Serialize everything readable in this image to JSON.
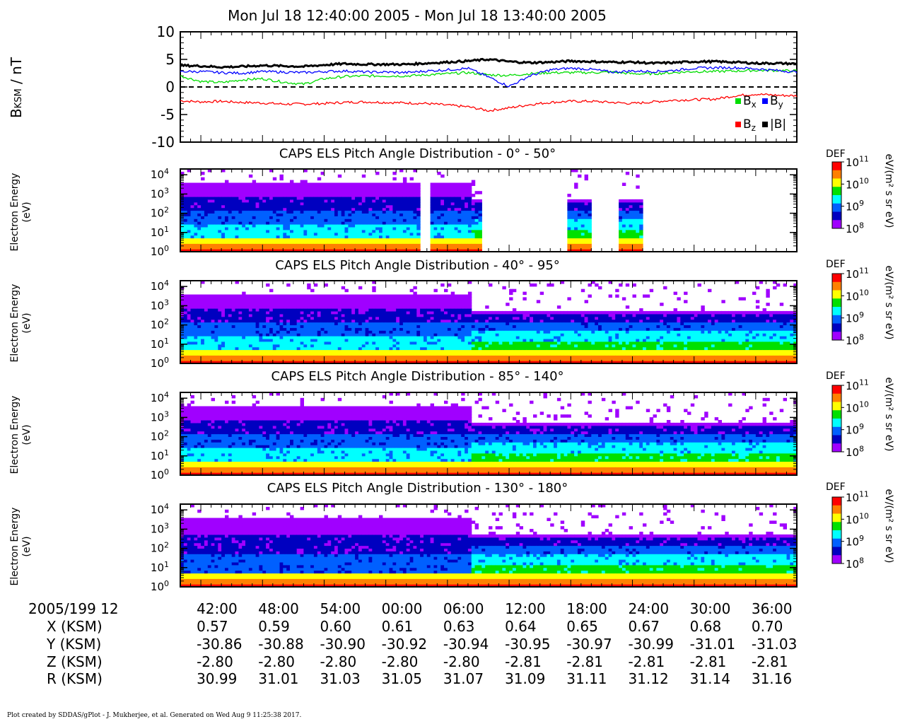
{
  "header": {
    "title": "Mon Jul 18 12:40:00 2005 - Mon Jul 18 13:40:00 2005"
  },
  "mag_panel": {
    "ylabel_main": "B",
    "ylabel_sub": "KSM",
    "ylabel_tail": " / nT",
    "yticks": [
      "10",
      "5",
      "0",
      "-5",
      "-10"
    ],
    "legend": [
      {
        "label": "B",
        "sub": "x",
        "color": "#00dd00"
      },
      {
        "label": "B",
        "sub": "y",
        "color": "#0000ff"
      },
      {
        "label": "B",
        "sub": "z",
        "color": "#ff0000"
      },
      {
        "label": "|B|",
        "sub": "",
        "color": "#000000"
      }
    ]
  },
  "spectro_panels": [
    {
      "title": "CAPS ELS Pitch Angle Distribution - 0° - 50°",
      "ylabel_line1": "Electron Energy",
      "ylabel_line2": "(eV)"
    },
    {
      "title": "CAPS ELS Pitch Angle Distribution - 40° - 95°",
      "ylabel_line1": "Electron Energy",
      "ylabel_line2": "(eV)"
    },
    {
      "title": "CAPS ELS Pitch Angle Distribution - 85° - 140°",
      "ylabel_line1": "Electron Energy",
      "ylabel_line2": "(eV)"
    },
    {
      "title": "CAPS ELS Pitch Angle Distribution - 130° - 180°",
      "ylabel_line1": "Electron Energy",
      "ylabel_line2": "(eV)"
    }
  ],
  "energy_ticks": [
    {
      "base": "10",
      "exp": "0"
    },
    {
      "base": "10",
      "exp": "1"
    },
    {
      "base": "10",
      "exp": "2"
    },
    {
      "base": "10",
      "exp": "3"
    },
    {
      "base": "10",
      "exp": "4"
    }
  ],
  "colorbar": {
    "label": "DEF",
    "unit": "eV/(m² s sr eV)",
    "ticks": [
      {
        "base": "10",
        "exp": "11"
      },
      {
        "base": "10",
        "exp": "10"
      },
      {
        "base": "10",
        "exp": "9"
      },
      {
        "base": "10",
        "exp": "8"
      }
    ],
    "colors": [
      "#ff0000",
      "#ff8000",
      "#ffff00",
      "#00e000",
      "#00ffff",
      "#0060ff",
      "#0000c0",
      "#a000ff"
    ]
  },
  "ephemeris": {
    "date_label": "2005/199 12",
    "times": [
      "42:00",
      "48:00",
      "54:00",
      "00:00",
      "06:00",
      "12:00",
      "18:00",
      "24:00",
      "30:00",
      "36:00"
    ],
    "rows": [
      {
        "label": "X (KSM)",
        "values": [
          "0.57",
          "0.59",
          "0.60",
          "0.61",
          "0.63",
          "0.64",
          "0.65",
          "0.67",
          "0.68",
          "0.70"
        ]
      },
      {
        "label": "Y (KSM)",
        "values": [
          "-30.86",
          "-30.88",
          "-30.90",
          "-30.92",
          "-30.94",
          "-30.95",
          "-30.97",
          "-30.99",
          "-31.01",
          "-31.03"
        ]
      },
      {
        "label": "Z (KSM)",
        "values": [
          "-2.80",
          "-2.80",
          "-2.80",
          "-2.80",
          "-2.80",
          "-2.81",
          "-2.81",
          "-2.81",
          "-2.81",
          "-2.81"
        ]
      },
      {
        "label": "R (KSM)",
        "values": [
          "30.99",
          "31.01",
          "31.03",
          "31.05",
          "31.07",
          "31.09",
          "31.11",
          "31.12",
          "31.14",
          "31.16"
        ]
      }
    ]
  },
  "footer": "Plot created by SDDAS/gPlot - J. Mukherjee, et al.  Generated on Wed Aug 9 11:25:38 2017.",
  "chart_data": [
    {
      "type": "line",
      "ylabel": "BKSM / nT",
      "ylim": [
        -10,
        10
      ],
      "x_minutes_after_1240": [
        0,
        2,
        4,
        6,
        8,
        10,
        12,
        14,
        16,
        18,
        20,
        22,
        24,
        26,
        28,
        30,
        32,
        34,
        36,
        38,
        40,
        42,
        44,
        46,
        48,
        50,
        52,
        54,
        56,
        58,
        60
      ],
      "series": [
        {
          "name": "Bx",
          "values": [
            2.0,
            1.0,
            0.8,
            1.3,
            1.5,
            0.9,
            0.5,
            1.5,
            1.9,
            2.0,
            2.0,
            2.0,
            2.2,
            2.4,
            2.6,
            2.2,
            2.1,
            2.4,
            2.6,
            2.6,
            2.6,
            2.7,
            2.4,
            2.4,
            2.6,
            2.8,
            2.8,
            2.9,
            3.0,
            3.0,
            2.9
          ]
        },
        {
          "name": "By",
          "values": [
            2.8,
            2.8,
            2.6,
            2.5,
            2.8,
            2.7,
            2.6,
            2.8,
            2.9,
            2.7,
            2.7,
            2.6,
            2.9,
            3.1,
            3.4,
            1.8,
            0.1,
            2.0,
            3.1,
            3.4,
            3.2,
            2.7,
            2.9,
            2.8,
            3.0,
            3.4,
            3.5,
            3.5,
            3.3,
            3.0,
            2.7
          ]
        },
        {
          "name": "Bz",
          "values": [
            -2.5,
            -2.7,
            -2.6,
            -2.8,
            -2.9,
            -3.1,
            -3.1,
            -3.0,
            -2.8,
            -2.7,
            -2.8,
            -2.9,
            -3.0,
            -3.3,
            -3.6,
            -4.3,
            -3.8,
            -3.2,
            -2.8,
            -2.6,
            -2.6,
            -2.8,
            -3.0,
            -2.7,
            -2.4,
            -2.3,
            -2.2,
            -1.6,
            -1.3,
            -1.5,
            -1.6
          ]
        },
        {
          "name": "|B|",
          "values": [
            3.9,
            3.8,
            3.6,
            3.7,
            3.9,
            3.8,
            3.7,
            4.0,
            4.2,
            4.1,
            4.1,
            4.1,
            4.3,
            4.5,
            4.7,
            5.0,
            4.6,
            4.4,
            4.5,
            4.7,
            4.6,
            4.5,
            4.5,
            4.3,
            4.4,
            4.6,
            4.6,
            4.5,
            4.3,
            4.3,
            4.2
          ]
        }
      ]
    },
    {
      "type": "heatmap",
      "title": "CAPS ELS Pitch Angle Distribution - 0° - 50°",
      "ylabel": "Electron Energy (eV)",
      "yscale": "log",
      "ylim": [
        1,
        20000
      ],
      "z_label": "DEF eV/(m² s sr eV)",
      "zlim": [
        100000000.0,
        100000000000.0
      ],
      "data_windows_minutes_after_1240": [
        [
          0,
          23.5
        ],
        [
          24.2,
          29.5
        ],
        [
          30.1,
          30.3
        ],
        [
          37.5,
          40.3
        ],
        [
          42.4,
          45.0
        ]
      ]
    },
    {
      "type": "heatmap",
      "title": "CAPS ELS Pitch Angle Distribution - 40° - 95°",
      "ylabel": "Electron Energy (eV)",
      "yscale": "log",
      "ylim": [
        1,
        20000
      ],
      "z_label": "DEF eV/(m² s sr eV)",
      "zlim": [
        100000000.0,
        100000000000.0
      ]
    },
    {
      "type": "heatmap",
      "title": "CAPS ELS Pitch Angle Distribution - 85° - 140°",
      "ylabel": "Electron Energy (eV)",
      "yscale": "log",
      "ylim": [
        1,
        20000
      ],
      "z_label": "DEF eV/(m² s sr eV)",
      "zlim": [
        100000000.0,
        100000000000.0
      ]
    },
    {
      "type": "heatmap",
      "title": "CAPS ELS Pitch Angle Distribution - 130° - 180°",
      "ylabel": "Electron Energy (eV)",
      "yscale": "log",
      "ylim": [
        1,
        20000
      ],
      "z_label": "DEF eV/(m² s sr eV)",
      "zlim": [
        100000000.0,
        100000000000.0
      ]
    }
  ]
}
